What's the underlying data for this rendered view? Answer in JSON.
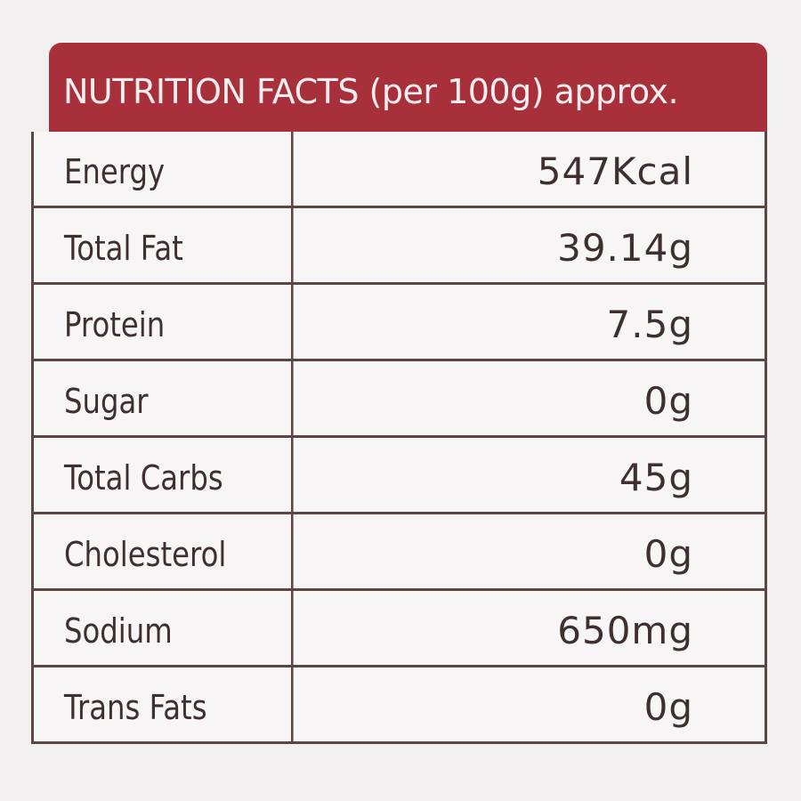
{
  "header": {
    "title": "NUTRITION FACTS (per 100g) approx."
  },
  "table": {
    "rows": [
      [
        "Energy",
        "547Kcal"
      ],
      [
        "Total Fat",
        "39.14g"
      ],
      [
        "Protein",
        "7.5g"
      ],
      [
        "Sugar",
        "0g"
      ],
      [
        "Total Carbs",
        "45g"
      ],
      [
        "Cholesterol",
        "0g"
      ],
      [
        "Sodium",
        "650mg"
      ],
      [
        "Trans Fats",
        "0g"
      ]
    ]
  }
}
